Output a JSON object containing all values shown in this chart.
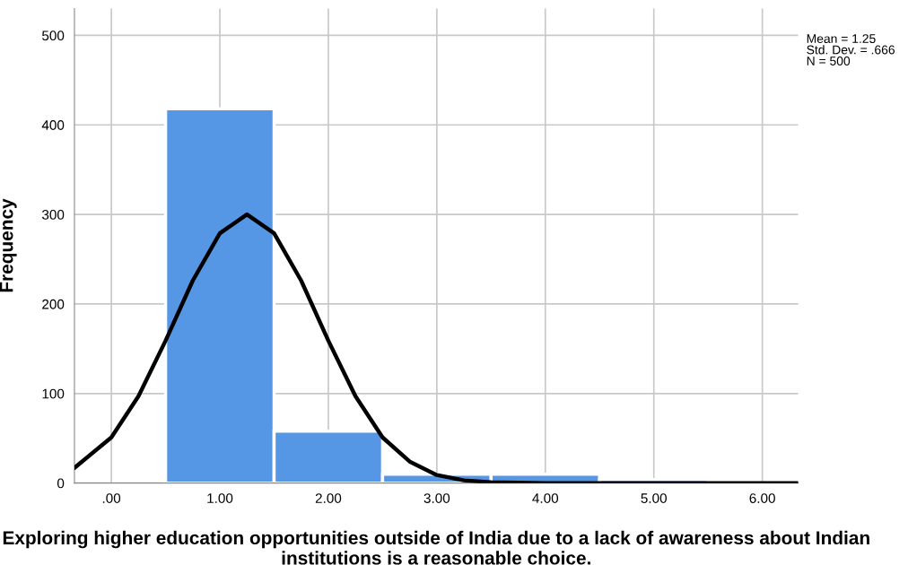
{
  "chart_data": {
    "type": "histogram",
    "xlabel": "Exploring higher education opportunities outside of India due to a lack of awareness about Indian institutions is a reasonable choice.",
    "ylabel": "Frequency",
    "bins": [
      0.5,
      1.5,
      2.5,
      3.5,
      4.5,
      5.5
    ],
    "values": [
      418,
      58,
      10,
      10,
      4
    ],
    "color": "#5596e5",
    "series": [
      {
        "type": "line",
        "color": "#000000",
        "line_style": "solid",
        "marker": "none",
        "x": [
          -0.34,
          0,
          0.25,
          0.5,
          0.75,
          1.0,
          1.25,
          1.5,
          1.75,
          2.0,
          2.25,
          2.5,
          2.75,
          3.0,
          3.25,
          3.5,
          4.0,
          5.0,
          6.33
        ],
        "values": [
          17,
          51,
          97,
          159,
          226,
          279,
          300,
          279,
          226,
          159,
          97,
          51,
          24,
          9,
          3,
          1,
          0,
          0,
          0
        ]
      }
    ],
    "xlim": [
      -0.34,
      6.33
    ],
    "ylim": [
      0,
      530
    ],
    "xticks": [
      {
        "value": 0,
        "label": ".00"
      },
      {
        "value": 1,
        "label": "1.00"
      },
      {
        "value": 2,
        "label": "2.00"
      },
      {
        "value": 3,
        "label": "3.00"
      },
      {
        "value": 4,
        "label": "4.00"
      },
      {
        "value": 5,
        "label": "5.00"
      },
      {
        "value": 6,
        "label": "6.00"
      }
    ],
    "yticks": [
      0,
      100,
      200,
      300,
      400,
      500
    ],
    "grid": true,
    "annotations": [
      "Mean = 1.25\nStd. Dev. = .666\nN = 500"
    ]
  }
}
